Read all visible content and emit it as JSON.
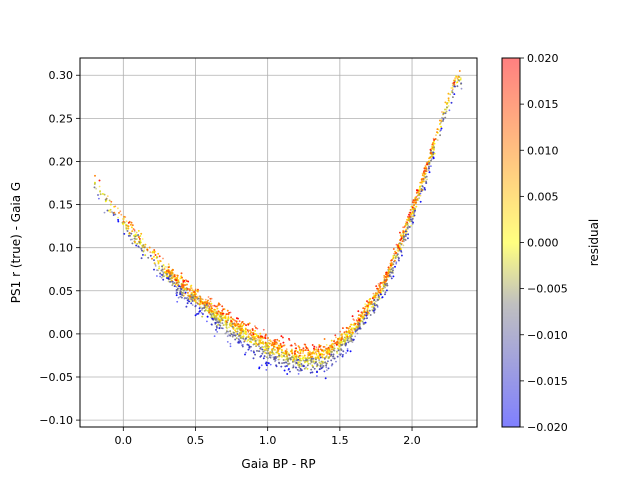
{
  "chart_data": {
    "type": "scatter",
    "title": "",
    "xlabel": "Gaia BP - RP",
    "ylabel": "PS1 r (true) - Gaia G",
    "xlim": [
      -0.3,
      2.45
    ],
    "ylim": [
      -0.108,
      0.32
    ],
    "x_ticks": [
      0.0,
      0.5,
      1.0,
      1.5,
      2.0
    ],
    "x_tick_labels": [
      "0.0",
      "0.5",
      "1.0",
      "1.5",
      "2.0"
    ],
    "y_ticks": [
      -0.1,
      -0.05,
      0.0,
      0.05,
      0.1,
      0.15,
      0.2,
      0.25,
      0.3
    ],
    "y_tick_labels": [
      "−0.10",
      "−0.05",
      "0.00",
      "0.05",
      "0.10",
      "0.15",
      "0.20",
      "0.25",
      "0.30"
    ],
    "grid": true,
    "series": [
      {
        "trend_x": [
          -0.2,
          0.0,
          0.2,
          0.4,
          0.6,
          0.8,
          1.0,
          1.2,
          1.4,
          1.6,
          1.8,
          1.9,
          2.0,
          2.1,
          2.2,
          2.3
        ],
        "trend_y": [
          0.175,
          0.13,
          0.09,
          0.055,
          0.028,
          0.005,
          -0.015,
          -0.028,
          -0.025,
          0.005,
          0.055,
          0.095,
          0.14,
          0.19,
          0.245,
          0.295
        ],
        "spread_by_residual": {
          "residual_-0.02": -0.025,
          "residual_0.00": 0.0,
          "residual_0.02": 0.012
        }
      }
    ],
    "colorbar": {
      "label": "residual",
      "range": [
        -0.02,
        0.02
      ],
      "ticks": [
        -0.02,
        -0.015,
        -0.01,
        -0.005,
        0.0,
        0.005,
        0.01,
        0.015,
        0.02
      ],
      "tick_labels": [
        "−0.020",
        "−0.015",
        "−0.010",
        "−0.005",
        "0.000",
        "0.005",
        "0.010",
        "0.015",
        "0.020"
      ],
      "colors": [
        "#0000ff",
        "#808080",
        "#ffff00",
        "#ff0000"
      ],
      "alpha": 0.5
    }
  }
}
